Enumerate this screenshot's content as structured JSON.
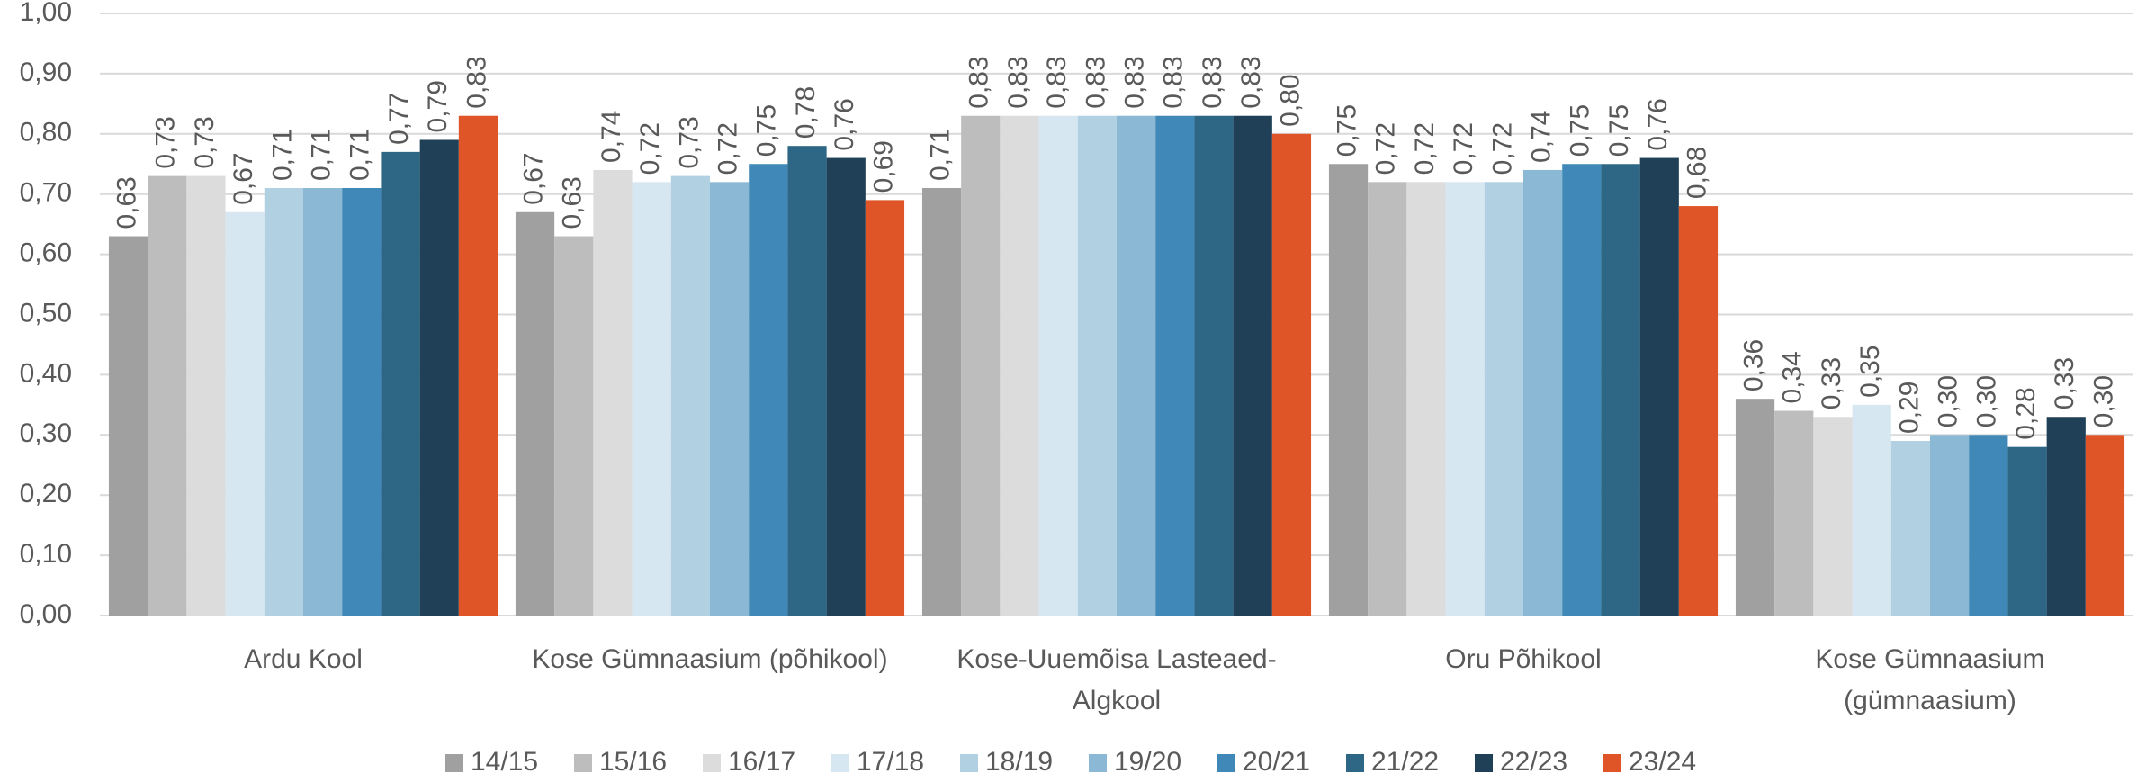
{
  "chart_data": {
    "type": "bar",
    "categories": [
      "Ardu Kool",
      "Kose Gümnaasium (põhikool)",
      "Kose-Uuemõisa Lasteaed-Algkool",
      "Oru Põhikool",
      "Kose Gümnaasium (gümnaasium)"
    ],
    "series": [
      {
        "name": "14/15",
        "color": "#a0a0a0",
        "values": [
          0.63,
          0.67,
          0.71,
          0.75,
          0.36
        ],
        "value_labels": [
          "0,63",
          "0,67",
          "0,71",
          "0,75",
          "0,36"
        ]
      },
      {
        "name": "15/16",
        "color": "#bdbdbd",
        "values": [
          0.73,
          0.63,
          0.83,
          0.72,
          0.34
        ],
        "value_labels": [
          "0,73",
          "0,63",
          "0,83",
          "0,72",
          "0,34"
        ]
      },
      {
        "name": "16/17",
        "color": "#dcdcdc",
        "values": [
          0.73,
          0.74,
          0.83,
          0.72,
          0.33
        ],
        "value_labels": [
          "0,73",
          "0,74",
          "0,83",
          "0,72",
          "0,33"
        ]
      },
      {
        "name": "17/18",
        "color": "#d7e7f1",
        "values": [
          0.67,
          0.72,
          0.83,
          0.72,
          0.35
        ],
        "value_labels": [
          "0,67",
          "0,72",
          "0,83",
          "0,72",
          "0,35"
        ]
      },
      {
        "name": "18/19",
        "color": "#b1d0e2",
        "values": [
          0.71,
          0.73,
          0.83,
          0.72,
          0.29
        ],
        "value_labels": [
          "0,71",
          "0,73",
          "0,83",
          "0,72",
          "0,29"
        ]
      },
      {
        "name": "19/20",
        "color": "#8bb9d5",
        "values": [
          0.71,
          0.72,
          0.83,
          0.74,
          0.3
        ],
        "value_labels": [
          "0,71",
          "0,72",
          "0,83",
          "0,74",
          "0,30"
        ]
      },
      {
        "name": "20/21",
        "color": "#3f88b7",
        "values": [
          0.71,
          0.75,
          0.83,
          0.75,
          0.3
        ],
        "value_labels": [
          "0,71",
          "0,75",
          "0,83",
          "0,75",
          "0,30"
        ]
      },
      {
        "name": "21/22",
        "color": "#2e6685",
        "values": [
          0.77,
          0.78,
          0.83,
          0.75,
          0.28
        ],
        "value_labels": [
          "0,77",
          "0,78",
          "0,83",
          "0,75",
          "0,28"
        ]
      },
      {
        "name": "22/23",
        "color": "#1f4056",
        "values": [
          0.79,
          0.76,
          0.83,
          0.76,
          0.33
        ],
        "value_labels": [
          "0,79",
          "0,76",
          "0,83",
          "0,76",
          "0,33"
        ]
      },
      {
        "name": "23/24",
        "color": "#e05527",
        "values": [
          0.83,
          0.69,
          0.8,
          0.68,
          0.3
        ],
        "value_labels": [
          "0,83",
          "0,69",
          "0,80",
          "0,68",
          "0,30"
        ]
      }
    ],
    "ylim": [
      0,
      1
    ],
    "yticks": [
      {
        "value": 0,
        "label": "0,00"
      },
      {
        "value": 0.1,
        "label": "0,10"
      },
      {
        "value": 0.2,
        "label": "0,20"
      },
      {
        "value": 0.3,
        "label": "0,30"
      },
      {
        "value": 0.4,
        "label": "0,40"
      },
      {
        "value": 0.5,
        "label": "0,50"
      },
      {
        "value": 0.6,
        "label": "0,60"
      },
      {
        "value": 0.7,
        "label": "0,70"
      },
      {
        "value": 0.8,
        "label": "0,80"
      },
      {
        "value": 0.9,
        "label": "0,90"
      },
      {
        "value": 1,
        "label": "1,00"
      }
    ],
    "grid": true,
    "legend": "bottom"
  }
}
